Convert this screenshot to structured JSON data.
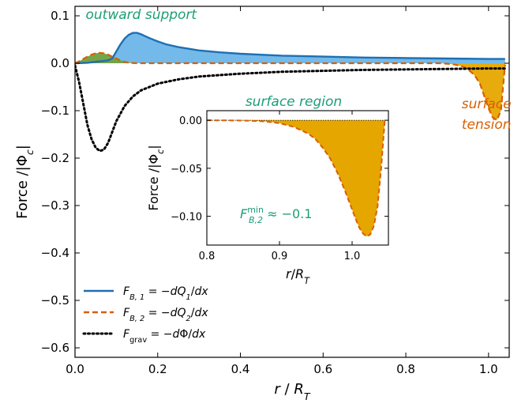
{
  "chart_data": [
    {
      "panel": "main",
      "type": "line",
      "xlabel": "r / R_T",
      "ylabel": "Force /|Φ_c|",
      "xlim": [
        0.0,
        1.05
      ],
      "ylim": [
        -0.62,
        0.12
      ],
      "xticks": [
        0.0,
        0.2,
        0.4,
        0.6,
        0.8,
        1.0
      ],
      "xtick_labels": [
        "0.0",
        "0.2",
        "0.4",
        "0.6",
        "0.8",
        "1.0"
      ],
      "yticks": [
        0.1,
        0.0,
        -0.1,
        -0.2,
        -0.3,
        -0.4,
        -0.5,
        -0.6
      ],
      "ytick_labels": [
        "0.1",
        "0.0",
        "−0.1",
        "−0.2",
        "−0.3",
        "−0.4",
        "−0.5",
        "−0.6"
      ],
      "grid": false,
      "legend_position": "bottom-left",
      "series": [
        {
          "name": "F_B,1 = −dQ_1/dx",
          "color": "#1f6fb2",
          "fill": "#5aaee6",
          "style": "solid",
          "x": [
            0.0,
            0.03,
            0.06,
            0.08,
            0.09,
            0.1,
            0.11,
            0.12,
            0.13,
            0.14,
            0.15,
            0.16,
            0.17,
            0.18,
            0.2,
            0.22,
            0.25,
            0.3,
            0.35,
            0.4,
            0.5,
            0.6,
            0.7,
            0.8,
            0.9,
            1.0,
            1.04
          ],
          "y": [
            0.0,
            0.001,
            0.004,
            0.006,
            0.01,
            0.025,
            0.04,
            0.052,
            0.06,
            0.064,
            0.064,
            0.061,
            0.057,
            0.053,
            0.046,
            0.04,
            0.034,
            0.027,
            0.023,
            0.02,
            0.016,
            0.014,
            0.012,
            0.011,
            0.01,
            0.009,
            0.009
          ]
        },
        {
          "name": "F_B,2 = −dQ_2/dx",
          "color": "#d95f02",
          "fill": "#e6a600",
          "style": "dashed",
          "x": [
            0.0,
            0.01,
            0.02,
            0.03,
            0.04,
            0.05,
            0.06,
            0.07,
            0.08,
            0.09,
            0.1,
            0.11,
            0.12,
            0.13,
            0.15,
            0.2,
            0.4,
            0.6,
            0.8,
            0.88,
            0.9,
            0.92,
            0.94,
            0.95,
            0.96,
            0.97,
            0.98,
            0.99,
            1.0,
            1.01,
            1.02,
            1.03,
            1.04
          ],
          "y": [
            0.0,
            0.004,
            0.009,
            0.014,
            0.018,
            0.021,
            0.022,
            0.021,
            0.018,
            0.014,
            0.01,
            0.006,
            0.003,
            0.001,
            0.0,
            0.0,
            0.0,
            0.0,
            0.0,
            0.0,
            -0.001,
            -0.003,
            -0.008,
            -0.013,
            -0.02,
            -0.03,
            -0.045,
            -0.07,
            -0.095,
            -0.114,
            -0.12,
            -0.1,
            -0.003
          ]
        },
        {
          "name": "F_grav = −dΦ/dx",
          "color": "#000000",
          "style": "dotted",
          "x": [
            0.0,
            0.01,
            0.02,
            0.03,
            0.04,
            0.05,
            0.06,
            0.07,
            0.08,
            0.09,
            0.1,
            0.12,
            0.14,
            0.16,
            0.2,
            0.25,
            0.3,
            0.4,
            0.5,
            0.6,
            0.7,
            0.8,
            0.9,
            1.0,
            1.04
          ],
          "y": [
            -0.005,
            -0.04,
            -0.085,
            -0.13,
            -0.16,
            -0.178,
            -0.185,
            -0.182,
            -0.168,
            -0.145,
            -0.122,
            -0.09,
            -0.07,
            -0.057,
            -0.043,
            -0.034,
            -0.028,
            -0.022,
            -0.018,
            -0.016,
            -0.014,
            -0.013,
            -0.012,
            -0.011,
            -0.011
          ]
        }
      ],
      "annotations": [
        {
          "text": "outward support",
          "x": 0.16,
          "y": 0.093,
          "color": "#1b9e77"
        },
        {
          "text": "surface",
          "x": 0.995,
          "y": -0.095,
          "color": "#d95f02"
        },
        {
          "text": "tension",
          "x": 0.995,
          "y": -0.138,
          "color": "#d95f02"
        }
      ]
    },
    {
      "panel": "inset",
      "type": "area",
      "title": "surface region",
      "xlabel": "r/R_T",
      "ylabel": "Force /|Φ_c|",
      "xlim": [
        0.8,
        1.05
      ],
      "ylim": [
        -0.13,
        0.01
      ],
      "xticks": [
        0.8,
        0.9,
        1.0
      ],
      "xtick_labels": [
        "0.8",
        "0.9",
        "1.0"
      ],
      "yticks": [
        0.0,
        -0.05,
        -0.1
      ],
      "ytick_labels": [
        "0.00",
        "−0.05",
        "−0.10"
      ],
      "series": [
        {
          "name": "F_B,2 = −dQ_2/dx",
          "color": "#d95f02",
          "fill": "#e6a600",
          "style": "dashed",
          "x": [
            0.8,
            0.84,
            0.86,
            0.88,
            0.9,
            0.92,
            0.94,
            0.95,
            0.96,
            0.97,
            0.98,
            0.99,
            1.0,
            1.005,
            1.01,
            1.015,
            1.02,
            1.025,
            1.03,
            1.035,
            1.04,
            1.045
          ],
          "y": [
            0.0,
            -0.0002,
            -0.0005,
            -0.0012,
            -0.003,
            -0.007,
            -0.014,
            -0.02,
            -0.029,
            -0.04,
            -0.055,
            -0.073,
            -0.093,
            -0.103,
            -0.112,
            -0.118,
            -0.121,
            -0.119,
            -0.11,
            -0.09,
            -0.05,
            0.0
          ]
        }
      ],
      "annotations": [
        {
          "text": "F_B,2^min ≈ −0.1",
          "color": "#1b9e77"
        }
      ]
    }
  ]
}
